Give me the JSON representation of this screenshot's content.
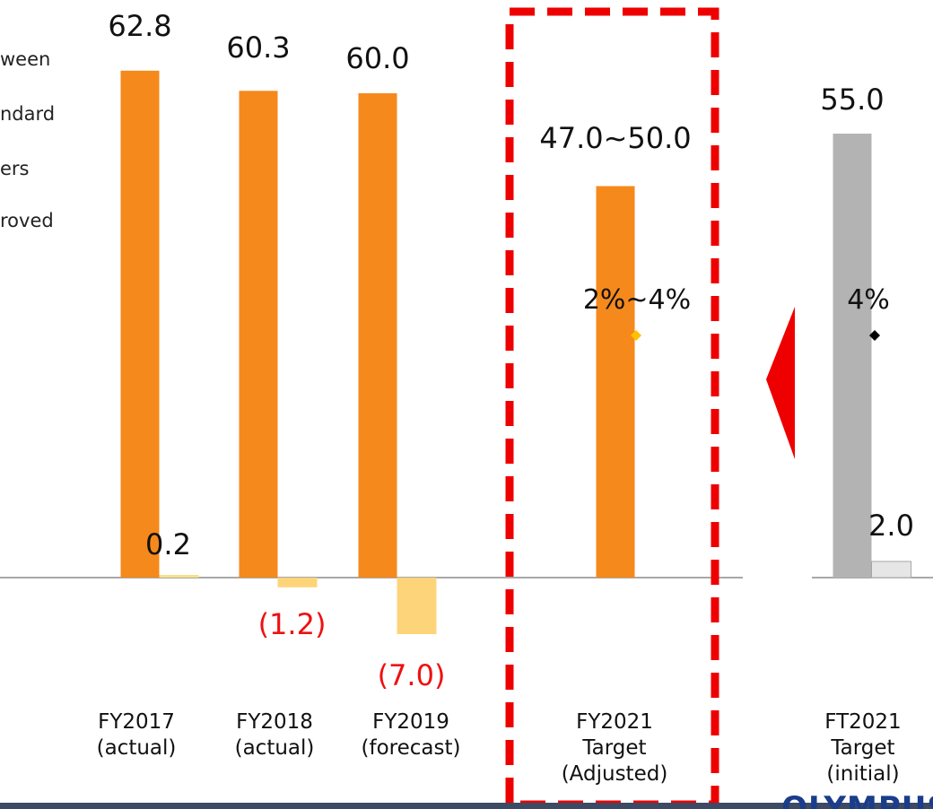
{
  "side_notes": [
    "ween",
    "ndard",
    "ers",
    "roved"
  ],
  "chart_data": {
    "type": "bar",
    "categories": [
      [
        "FY2017",
        "(actual)"
      ],
      [
        "FY2018",
        "(actual)"
      ],
      [
        "FY2019",
        "(forecast)"
      ],
      [
        "FY2021",
        "Target",
        "(Adjusted)"
      ],
      [
        "FT2021",
        "Target",
        "(initial)"
      ]
    ],
    "series": [
      {
        "values": [
          62.8,
          60.3,
          60.0,
          48.5,
          55.0
        ],
        "labels": [
          "62.8",
          "60.3",
          "60.0",
          "47.0~50.0",
          "55.0"
        ],
        "colors": [
          "#f5891c",
          "#f5891c",
          "#f5891c",
          "#f5891c",
          "#b3b3b3"
        ]
      },
      {
        "values": [
          0.2,
          -1.2,
          -7.0,
          null,
          2.0
        ],
        "labels": [
          "0.2",
          "(1.2)",
          "(7.0)",
          "",
          "2.0"
        ],
        "colors": [
          "#f7e08a",
          "#fdd47a",
          "#fdd47a",
          "#fdd47a",
          "#e6e6e6"
        ]
      }
    ],
    "percent_markers": [
      {
        "category_index": 3,
        "label": "2%~4%",
        "color": "#ffc000"
      },
      {
        "category_index": 4,
        "label": "4%",
        "color": "#000000"
      }
    ],
    "highlight_box": {
      "category_index": 3,
      "color": "#ee0000",
      "style": "dashed"
    },
    "arrow_color": "#ee0000",
    "footer_logo": "OLYMPUS",
    "ylim": [
      -9,
      66
    ]
  }
}
